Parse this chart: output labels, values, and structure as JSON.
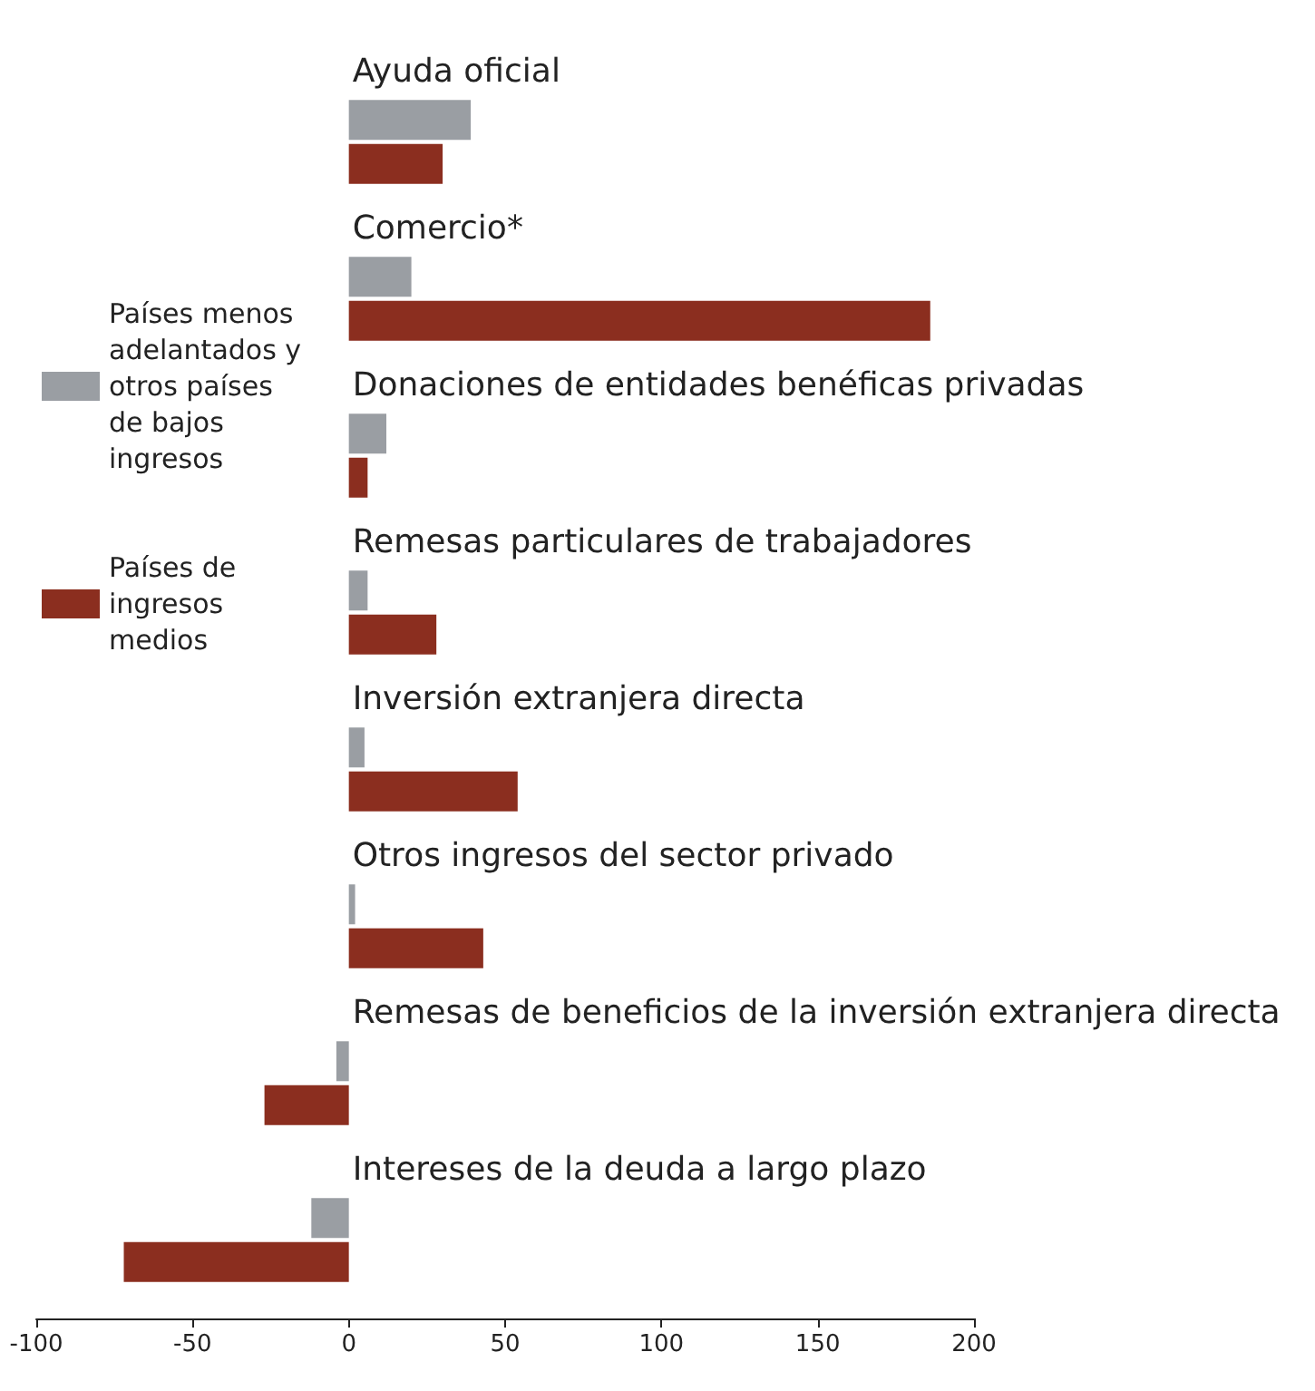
{
  "chart_data": {
    "type": "bar",
    "orientation": "horizontal",
    "categories": [
      "Ayuda oficial",
      "Comercio*",
      "Donaciones de entidades benéficas privadas",
      "Remesas particulares de trabajadores",
      "Inversión extranjera directa",
      "Otros ingresos del sector privado",
      "Remesas de beneficios de la inversión extranjera directa",
      "Intereses de la deuda a largo plazo"
    ],
    "series": [
      {
        "name": "Países menos adelantados y otros países de bajos ingresos",
        "color": "#9a9ea3",
        "values": [
          39,
          20,
          12,
          6,
          5,
          2,
          -4,
          -12
        ]
      },
      {
        "name": "Países de ingresos medios",
        "color": "#8b2e1f",
        "values": [
          30,
          186,
          6,
          28,
          54,
          43,
          -27,
          -72
        ]
      }
    ],
    "xlim": [
      -100,
      200
    ],
    "xticks": [
      -100,
      -50,
      0,
      50,
      100,
      150,
      200
    ],
    "grid": false,
    "legend": "left"
  }
}
